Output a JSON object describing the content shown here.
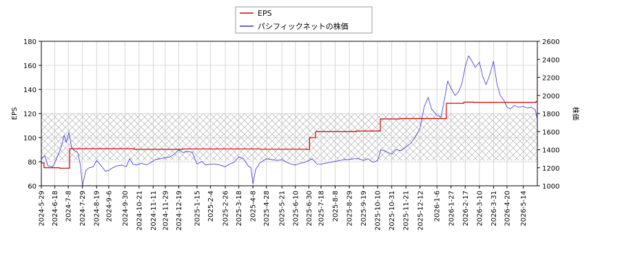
{
  "chart_data": {
    "type": "line",
    "legend": {
      "placement": "top-center",
      "entries": [
        "EPS",
        "パシフィックネットの株価"
      ]
    },
    "y_left": {
      "label": "EPS",
      "lim": [
        60,
        180
      ],
      "ticks": [
        "60",
        "80",
        "100",
        "120",
        "140",
        "160",
        "180"
      ]
    },
    "y_right": {
      "label": "株価",
      "lim": [
        1000,
        2600
      ],
      "ticks": [
        "1000",
        "1200",
        "1400",
        "1600",
        "1800",
        "2000",
        "2200",
        "2400",
        "2600"
      ]
    },
    "x_lim": [
      "2024-05-29",
      "2026-06-04"
    ],
    "x_ticks": [
      "2024-5-29",
      "2024-6-18",
      "2024-7-8",
      "2024-7-29",
      "2024-8-19",
      "2024-9-6",
      "2024-9-30",
      "2024-10-21",
      "2024-11-11",
      "2024-11-29",
      "2024-12-19",
      "2025-1-15",
      "2025-2-4",
      "2025-2-26",
      "2025-3-18",
      "2025-4-8",
      "2025-4-28",
      "2025-5-21",
      "2025-6-10",
      "2025-6-30",
      "2025-7-18",
      "2025-8-8",
      "2025-8-29",
      "2025-9-19",
      "2025-10-10",
      "2025-10-31",
      "2025-11-21",
      "2025-12-12",
      "2026-1-6",
      "2026-1-27",
      "2026-2-17",
      "2026-3-10",
      "2026-3-31",
      "2026-4-20",
      "2026-5-14"
    ],
    "grid": true,
    "shaded_band": {
      "axis": "left",
      "range": [
        81,
        120
      ],
      "pattern": "crosshatch"
    },
    "series": [
      {
        "name": "EPS",
        "axis": "left",
        "color": "#cc0000",
        "step": true,
        "points": [
          [
            "2024-05-29",
            79
          ],
          [
            "2024-06-02",
            75
          ],
          [
            "2024-06-25",
            74.6
          ],
          [
            "2024-07-10",
            90.8
          ],
          [
            "2024-10-14",
            90.3
          ],
          [
            "2024-12-25",
            90.6
          ],
          [
            "2025-04-20",
            90.4
          ],
          [
            "2025-06-26",
            90.2
          ],
          [
            "2025-07-01",
            100
          ],
          [
            "2025-07-10",
            105
          ],
          [
            "2025-09-08",
            105.5
          ],
          [
            "2025-10-14",
            115.5
          ],
          [
            "2025-11-12",
            115.8
          ],
          [
            "2026-01-20",
            128.5
          ],
          [
            "2026-02-15",
            129.5
          ],
          [
            "2026-03-01",
            129.3
          ],
          [
            "2026-06-02",
            130
          ],
          [
            "2026-06-04",
            160
          ]
        ]
      },
      {
        "name": "パシフィックネットの株価",
        "axis": "right",
        "color": "#3333cc",
        "points": [
          [
            "2024-05-29",
            1300
          ],
          [
            "2024-06-03",
            1330
          ],
          [
            "2024-06-08",
            1220
          ],
          [
            "2024-06-15",
            1210
          ],
          [
            "2024-06-20",
            1290
          ],
          [
            "2024-06-27",
            1420
          ],
          [
            "2024-07-02",
            1560
          ],
          [
            "2024-07-05",
            1480
          ],
          [
            "2024-07-09",
            1590
          ],
          [
            "2024-07-13",
            1420
          ],
          [
            "2024-07-17",
            1390
          ],
          [
            "2024-07-22",
            1370
          ],
          [
            "2024-07-26",
            1230
          ],
          [
            "2024-07-29",
            1000
          ],
          [
            "2024-08-03",
            1170
          ],
          [
            "2024-08-08",
            1200
          ],
          [
            "2024-08-14",
            1210
          ],
          [
            "2024-08-19",
            1280
          ],
          [
            "2024-08-25",
            1230
          ],
          [
            "2024-09-01",
            1160
          ],
          [
            "2024-09-06",
            1170
          ],
          [
            "2024-09-12",
            1200
          ],
          [
            "2024-09-18",
            1220
          ],
          [
            "2024-09-26",
            1230
          ],
          [
            "2024-10-02",
            1210
          ],
          [
            "2024-10-07",
            1300
          ],
          [
            "2024-10-12",
            1240
          ],
          [
            "2024-10-17",
            1230
          ],
          [
            "2024-10-25",
            1250
          ],
          [
            "2024-11-01",
            1230
          ],
          [
            "2024-11-08",
            1260
          ],
          [
            "2024-11-14",
            1290
          ],
          [
            "2024-11-21",
            1300
          ],
          [
            "2024-11-29",
            1310
          ],
          [
            "2024-12-06",
            1320
          ],
          [
            "2024-12-12",
            1350
          ],
          [
            "2024-12-19",
            1400
          ],
          [
            "2024-12-25",
            1370
          ],
          [
            "2025-01-02",
            1380
          ],
          [
            "2025-01-08",
            1370
          ],
          [
            "2025-01-15",
            1240
          ],
          [
            "2025-01-22",
            1270
          ],
          [
            "2025-01-28",
            1230
          ],
          [
            "2025-02-04",
            1240
          ],
          [
            "2025-02-11",
            1240
          ],
          [
            "2025-02-18",
            1230
          ],
          [
            "2025-02-26",
            1210
          ],
          [
            "2025-03-04",
            1240
          ],
          [
            "2025-03-11",
            1260
          ],
          [
            "2025-03-18",
            1320
          ],
          [
            "2025-03-25",
            1300
          ],
          [
            "2025-04-01",
            1220
          ],
          [
            "2025-04-05",
            1200
          ],
          [
            "2025-04-08",
            1020
          ],
          [
            "2025-04-12",
            1180
          ],
          [
            "2025-04-18",
            1250
          ],
          [
            "2025-04-28",
            1300
          ],
          [
            "2025-05-06",
            1290
          ],
          [
            "2025-05-14",
            1280
          ],
          [
            "2025-05-21",
            1290
          ],
          [
            "2025-05-28",
            1260
          ],
          [
            "2025-06-04",
            1240
          ],
          [
            "2025-06-10",
            1230
          ],
          [
            "2025-06-17",
            1250
          ],
          [
            "2025-06-24",
            1260
          ],
          [
            "2025-06-30",
            1280
          ],
          [
            "2025-07-05",
            1300
          ],
          [
            "2025-07-12",
            1240
          ],
          [
            "2025-07-18",
            1240
          ],
          [
            "2025-07-25",
            1250
          ],
          [
            "2025-08-01",
            1260
          ],
          [
            "2025-08-08",
            1270
          ],
          [
            "2025-08-15",
            1280
          ],
          [
            "2025-08-22",
            1290
          ],
          [
            "2025-08-29",
            1290
          ],
          [
            "2025-09-05",
            1300
          ],
          [
            "2025-09-12",
            1300
          ],
          [
            "2025-09-19",
            1280
          ],
          [
            "2025-09-26",
            1300
          ],
          [
            "2025-10-03",
            1260
          ],
          [
            "2025-10-10",
            1280
          ],
          [
            "2025-10-15",
            1400
          ],
          [
            "2025-10-22",
            1380
          ],
          [
            "2025-10-31",
            1350
          ],
          [
            "2025-11-06",
            1400
          ],
          [
            "2025-11-14",
            1390
          ],
          [
            "2025-11-21",
            1430
          ],
          [
            "2025-11-28",
            1470
          ],
          [
            "2025-12-05",
            1540
          ],
          [
            "2025-12-12",
            1640
          ],
          [
            "2025-12-18",
            1870
          ],
          [
            "2025-12-24",
            1980
          ],
          [
            "2025-12-29",
            1850
          ],
          [
            "2026-01-06",
            1780
          ],
          [
            "2026-01-12",
            1760
          ],
          [
            "2026-01-17",
            1950
          ],
          [
            "2026-01-22",
            2160
          ],
          [
            "2026-01-27",
            2080
          ],
          [
            "2026-02-02",
            2000
          ],
          [
            "2026-02-07",
            2040
          ],
          [
            "2026-02-12",
            2130
          ],
          [
            "2026-02-17",
            2320
          ],
          [
            "2026-02-22",
            2440
          ],
          [
            "2026-02-27",
            2380
          ],
          [
            "2026-03-04",
            2310
          ],
          [
            "2026-03-10",
            2370
          ],
          [
            "2026-03-15",
            2210
          ],
          [
            "2026-03-20",
            2120
          ],
          [
            "2026-03-25",
            2220
          ],
          [
            "2026-03-31",
            2380
          ],
          [
            "2026-04-05",
            2130
          ],
          [
            "2026-04-10",
            2000
          ],
          [
            "2026-04-15",
            1950
          ],
          [
            "2026-04-20",
            1870
          ],
          [
            "2026-04-25",
            1850
          ],
          [
            "2026-05-01",
            1890
          ],
          [
            "2026-05-07",
            1870
          ],
          [
            "2026-05-14",
            1880
          ],
          [
            "2026-05-20",
            1860
          ],
          [
            "2026-05-26",
            1870
          ],
          [
            "2026-06-01",
            1840
          ],
          [
            "2026-06-04",
            1740
          ]
        ]
      }
    ]
  }
}
